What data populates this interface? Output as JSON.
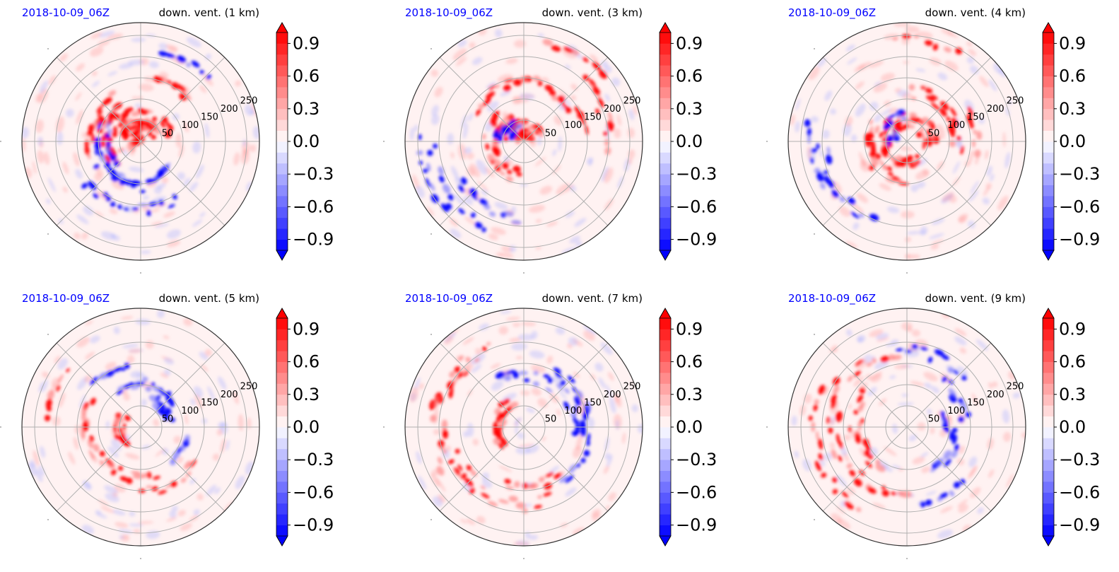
{
  "figure": {
    "colors": {
      "positive": "#ff0000",
      "negative": "#0000ff",
      "date_label": "#0000ff",
      "grid": "#b0b0b0"
    },
    "colorbar": {
      "ticks": [
        "0.9",
        "0.6",
        "0.3",
        "0.0",
        "−0.3",
        "−0.6",
        "−0.9"
      ],
      "tick_values": [
        0.9,
        0.6,
        0.3,
        0.0,
        -0.3,
        -0.6,
        -0.9
      ],
      "range": [
        -1.0,
        1.0
      ],
      "extend": "both"
    }
  },
  "chart_data": [
    {
      "type": "heatmap",
      "projection": "polar",
      "date_label": "2018-10-09_06Z",
      "title": "down. vent. (1 km)",
      "radial_tick_labels": [
        "50",
        "100",
        "150",
        "200",
        "250"
      ],
      "radial_ticks": [
        50,
        100,
        150,
        200,
        250
      ],
      "features": {
        "red": [
          [
            90,
            60,
            160,
            40
          ],
          [
            115,
            30,
            200,
            60
          ],
          [
            150,
            90,
            60,
            20
          ],
          [
            160,
            120,
            80,
            25
          ],
          [
            100,
            35,
            60,
            25
          ],
          [
            60,
            150,
            40,
            18
          ],
          [
            200,
            80,
            50,
            20
          ]
        ],
        "blue": [
          [
            200,
            90,
            100,
            30
          ],
          [
            230,
            110,
            90,
            25
          ],
          [
            260,
            160,
            90,
            25
          ],
          [
            300,
            90,
            40,
            18
          ],
          [
            60,
            220,
            40,
            15
          ]
        ]
      }
    },
    {
      "type": "heatmap",
      "projection": "polar",
      "date_label": "2018-10-09_06Z",
      "title": "down. vent. (3 km)",
      "radial_tick_labels": [
        "50",
        "100",
        "150",
        "200",
        "250"
      ],
      "radial_ticks": [
        50,
        100,
        150,
        200,
        250
      ],
      "features": {
        "red": [
          [
            80,
            140,
            140,
            30
          ],
          [
            95,
            30,
            160,
            40
          ],
          [
            200,
            80,
            130,
            30
          ],
          [
            20,
            200,
            60,
            25
          ],
          [
            140,
            60,
            60,
            20
          ],
          [
            60,
            240,
            40,
            20
          ]
        ],
        "blue": [
          [
            130,
            40,
            50,
            25
          ],
          [
            215,
            220,
            70,
            30
          ],
          [
            240,
            180,
            60,
            25
          ],
          [
            200,
            240,
            45,
            20
          ],
          [
            160,
            60,
            30,
            15
          ]
        ]
      }
    },
    {
      "type": "heatmap",
      "projection": "polar",
      "date_label": "2018-10-09_06Z",
      "title": "down. vent. (4 km)",
      "radial_tick_labels": [
        "50",
        "100",
        "150",
        "200",
        "250"
      ],
      "radial_ticks": [
        50,
        100,
        150,
        200,
        250
      ],
      "features": {
        "red": [
          [
            40,
            120,
            100,
            35
          ],
          [
            100,
            50,
            220,
            40
          ],
          [
            210,
            90,
            120,
            30
          ],
          [
            10,
            160,
            40,
            25
          ],
          [
            270,
            50,
            80,
            20
          ],
          [
            80,
            240,
            40,
            20
          ]
        ],
        "blue": [
          [
            160,
            35,
            40,
            20
          ],
          [
            120,
            60,
            50,
            20
          ],
          [
            215,
            200,
            70,
            30
          ],
          [
            190,
            230,
            45,
            20
          ]
        ]
      }
    },
    {
      "type": "heatmap",
      "projection": "polar",
      "date_label": "2018-10-09_06Z",
      "title": "down. vent. (5 km)",
      "radial_tick_labels": [
        "50",
        "100",
        "150",
        "200",
        "250"
      ],
      "radial_ticks": [
        50,
        100,
        150,
        200,
        250
      ],
      "features": {
        "red": [
          [
            190,
            50,
            90,
            25
          ],
          [
            240,
            120,
            100,
            25
          ],
          [
            300,
            150,
            60,
            25
          ],
          [
            170,
            130,
            40,
            20
          ],
          [
            160,
            220,
            40,
            20
          ]
        ],
        "blue": [
          [
            80,
            100,
            90,
            30
          ],
          [
            40,
            70,
            60,
            25
          ],
          [
            120,
            150,
            40,
            15
          ],
          [
            330,
            110,
            40,
            15
          ]
        ]
      }
    },
    {
      "type": "heatmap",
      "projection": "polar",
      "date_label": "2018-10-09_06Z",
      "title": "down. vent. (7 km)",
      "radial_tick_labels": [
        "50",
        "100",
        "150",
        "200",
        "250"
      ],
      "radial_ticks": [
        50,
        100,
        150,
        200,
        250
      ],
      "features": {
        "red": [
          [
            170,
            60,
            110,
            35
          ],
          [
            180,
            200,
            100,
            45
          ],
          [
            240,
            180,
            110,
            40
          ],
          [
            140,
            200,
            60,
            30
          ],
          [
            280,
            140,
            60,
            25
          ]
        ],
        "blue": [
          [
            80,
            120,
            80,
            30
          ],
          [
            30,
            150,
            70,
            25
          ],
          [
            10,
            120,
            40,
            20
          ],
          [
            330,
            160,
            50,
            20
          ]
        ]
      }
    },
    {
      "type": "heatmap",
      "projection": "polar",
      "date_label": "2018-10-09_06Z",
      "title": "down. vent. (9 km)",
      "radial_tick_labels": [
        "50",
        "100",
        "150",
        "200",
        "250"
      ],
      "radial_ticks": [
        50,
        100,
        150,
        200,
        250
      ],
      "features": {
        "red": [
          [
            150,
            180,
            110,
            40
          ],
          [
            190,
            120,
            100,
            35
          ],
          [
            240,
            160,
            70,
            30
          ],
          [
            200,
            220,
            90,
            30
          ]
        ],
        "blue": [
          [
            70,
            180,
            60,
            25
          ],
          [
            30,
            140,
            50,
            25
          ],
          [
            330,
            120,
            60,
            25
          ],
          [
            300,
            180,
            40,
            20
          ],
          [
            10,
            90,
            30,
            15
          ]
        ]
      }
    }
  ]
}
